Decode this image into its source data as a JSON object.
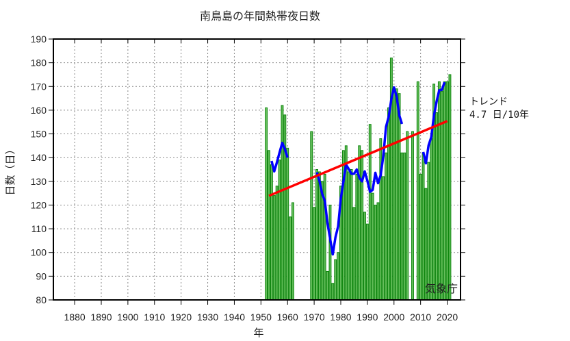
{
  "chart_data": {
    "type": "bar",
    "title": "南鳥島の年間熱帯夜日数",
    "xlabel": "年",
    "ylabel": "日数（日）",
    "xlim": [
      1872,
      2025
    ],
    "ylim": [
      80,
      190
    ],
    "x_ticks": [
      1880,
      1890,
      1900,
      1910,
      1920,
      1930,
      1940,
      1950,
      1960,
      1970,
      1980,
      1990,
      2000,
      2010,
      2020
    ],
    "y_ticks": [
      80,
      90,
      100,
      110,
      120,
      130,
      140,
      150,
      160,
      170,
      180,
      190
    ],
    "grid": true,
    "x": [
      1952,
      1953,
      1954,
      1955,
      1956,
      1957,
      1958,
      1959,
      1960,
      1961,
      1962,
      1969,
      1970,
      1971,
      1972,
      1973,
      1974,
      1975,
      1976,
      1977,
      1978,
      1979,
      1980,
      1981,
      1982,
      1983,
      1984,
      1985,
      1986,
      1987,
      1988,
      1989,
      1990,
      1991,
      1992,
      1993,
      1994,
      1995,
      1996,
      1997,
      1998,
      1999,
      2000,
      2001,
      2002,
      2003,
      2004,
      2005,
      2007,
      2009,
      2010,
      2011,
      2012,
      2013,
      2014,
      2015,
      2016,
      2017,
      2018,
      2019,
      2020,
      2021
    ],
    "values": [
      161,
      143,
      137,
      124,
      128,
      139,
      162,
      158,
      144,
      115,
      121,
      151,
      119,
      135,
      134,
      130,
      133,
      92,
      120,
      87,
      97,
      100,
      128,
      143,
      145,
      134,
      135,
      119,
      133,
      145,
      143,
      117,
      112,
      154,
      125,
      120,
      121,
      148,
      132,
      142,
      161,
      182,
      169,
      169,
      167,
      142,
      142,
      151,
      151,
      172,
      133,
      142,
      127,
      138,
      148,
      171,
      159,
      172,
      168,
      172,
      172,
      175
    ],
    "running_mean_window": 5,
    "trend": {
      "label": "トレンド",
      "value_text": "4.7 日/10年",
      "per_decade": 4.7,
      "x_range": [
        1953,
        2020
      ],
      "start_value": 123.9
    },
    "colors": {
      "bar_fill": "#66bf5c",
      "bar_edge": "#0e850e",
      "running_mean": "#0000ff",
      "trend": "#ff0000"
    }
  },
  "watermark": "気象庁"
}
